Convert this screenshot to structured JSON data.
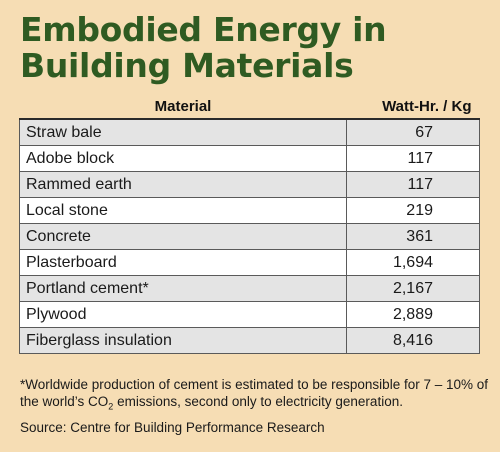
{
  "title": {
    "line1": "Embodied Energy in",
    "line2": "Building Materials"
  },
  "table": {
    "col_material": "Material",
    "col_value": "Watt-Hr. / Kg"
  },
  "chart_data": {
    "type": "table",
    "title": "Embodied Energy in Building Materials",
    "columns": [
      "Material",
      "Watt-Hr. / Kg"
    ],
    "rows": [
      {
        "material": "Straw bale",
        "value": "67"
      },
      {
        "material": "Adobe block",
        "value": "117"
      },
      {
        "material": "Rammed earth",
        "value": "117"
      },
      {
        "material": "Local stone",
        "value": "219"
      },
      {
        "material": "Concrete",
        "value": "361"
      },
      {
        "material": "Plasterboard",
        "value": "1,694"
      },
      {
        "material": "Portland cement*",
        "value": "2,167"
      },
      {
        "material": "Plywood",
        "value": "2,889"
      },
      {
        "material": "Fiberglass insulation",
        "value": "8,416"
      }
    ]
  },
  "footnote": {
    "before": "*Worldwide production of cement is estimated to be responsible for 7 – 10% of the world’s CO",
    "subscript": "2",
    "after": " emissions, second only to electricity generation."
  },
  "source": "Source: Centre for Building Performance Research",
  "colors": {
    "background": "#f6ddb4",
    "title": "#2f5b22",
    "row_shaded": "#e4e4e4",
    "row_plain": "#ffffff"
  }
}
